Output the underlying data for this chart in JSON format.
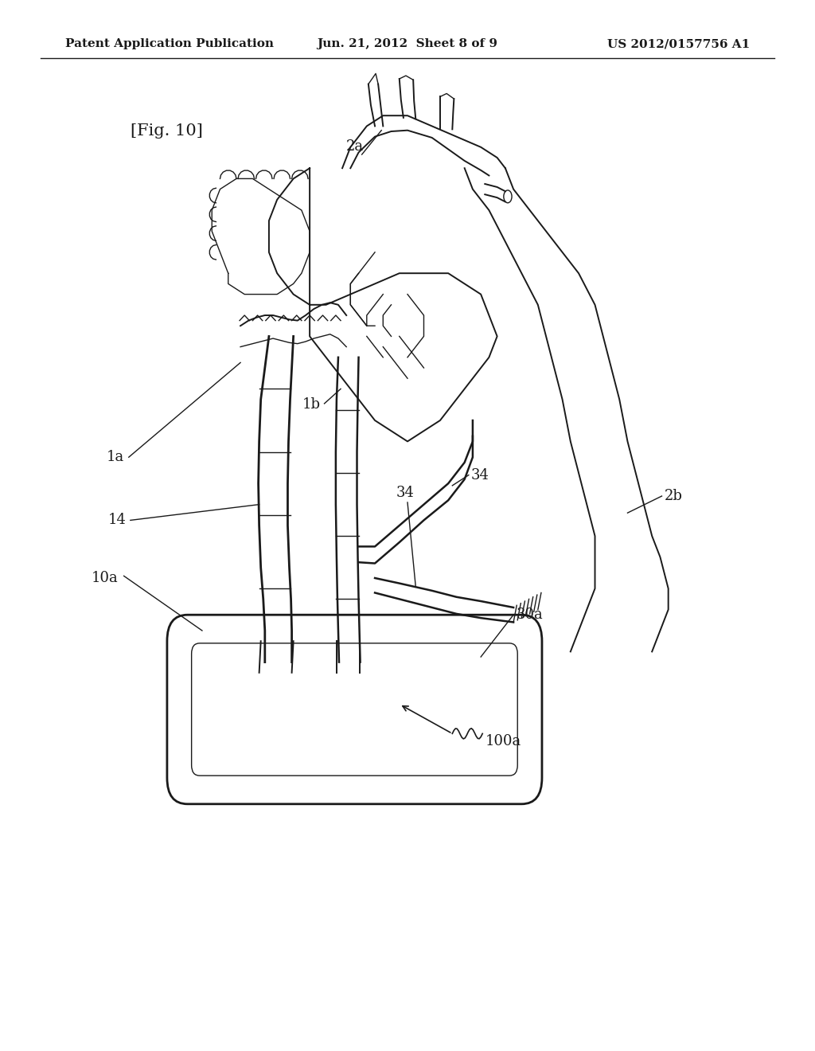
{
  "background_color": "#ffffff",
  "header_left": "Patent Application Publication",
  "header_center": "Jun. 21, 2012  Sheet 8 of 9",
  "header_right": "US 2012/0157756 A1",
  "fig_label": "[Fig. 10]",
  "line_color": "#1a1a1a",
  "text_color": "#1a1a1a",
  "header_fontsize": 11,
  "label_fontsize": 13,
  "fig_label_fontsize": 15
}
